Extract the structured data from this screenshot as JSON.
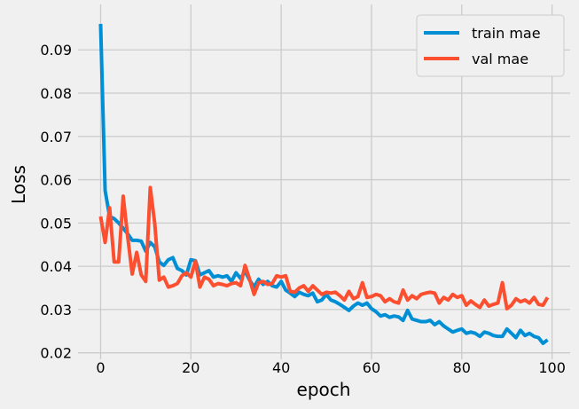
{
  "chart_data": {
    "type": "line",
    "title": "",
    "xlabel": "epoch",
    "ylabel": "Loss",
    "xlim": [
      -5,
      104
    ],
    "ylim": [
      0.0185,
      0.1005
    ],
    "xticks": [
      "0",
      "20",
      "40",
      "60",
      "80",
      "100"
    ],
    "yticks": [
      "0.02",
      "0.03",
      "0.04",
      "0.05",
      "0.06",
      "0.07",
      "0.08",
      "0.09"
    ],
    "grid": true,
    "legend_position": "top-right",
    "colors": {
      "background": "#f0f0f0",
      "grid": "#cbcbcb",
      "train": "#008fd5",
      "val": "#fc4f30"
    },
    "x": [
      0,
      1,
      2,
      3,
      4,
      5,
      6,
      7,
      8,
      9,
      10,
      11,
      12,
      13,
      14,
      15,
      16,
      17,
      18,
      19,
      20,
      21,
      22,
      23,
      24,
      25,
      26,
      27,
      28,
      29,
      30,
      31,
      32,
      33,
      34,
      35,
      36,
      37,
      38,
      39,
      40,
      41,
      42,
      43,
      44,
      45,
      46,
      47,
      48,
      49,
      50,
      51,
      52,
      53,
      54,
      55,
      56,
      57,
      58,
      59,
      60,
      61,
      62,
      63,
      64,
      65,
      66,
      67,
      68,
      69,
      70,
      71,
      72,
      73,
      74,
      75,
      76,
      77,
      78,
      79,
      80,
      81,
      82,
      83,
      84,
      85,
      86,
      87,
      88,
      89,
      90,
      91,
      92,
      93,
      94,
      95,
      96,
      97,
      98,
      99
    ],
    "series": [
      {
        "name": "train mae",
        "color": "#008fd5",
        "values": [
          0.096,
          0.0575,
          0.0515,
          0.051,
          0.05,
          0.0488,
          0.0475,
          0.046,
          0.046,
          0.0458,
          0.0435,
          0.0455,
          0.0445,
          0.041,
          0.0402,
          0.0415,
          0.042,
          0.0395,
          0.039,
          0.038,
          0.0415,
          0.0413,
          0.038,
          0.0385,
          0.039,
          0.0375,
          0.0378,
          0.0375,
          0.0378,
          0.0365,
          0.0385,
          0.0372,
          0.0388,
          0.0368,
          0.0352,
          0.037,
          0.0358,
          0.0365,
          0.0355,
          0.0352,
          0.0365,
          0.0345,
          0.0338,
          0.033,
          0.034,
          0.0335,
          0.0332,
          0.0338,
          0.0318,
          0.0322,
          0.0335,
          0.0322,
          0.0318,
          0.0312,
          0.0305,
          0.0298,
          0.0308,
          0.0315,
          0.031,
          0.0315,
          0.0302,
          0.0295,
          0.0285,
          0.0288,
          0.0282,
          0.0285,
          0.0283,
          0.0275,
          0.0298,
          0.0278,
          0.0275,
          0.0272,
          0.0272,
          0.0275,
          0.0265,
          0.0272,
          0.0262,
          0.0255,
          0.0248,
          0.0252,
          0.0255,
          0.0245,
          0.0248,
          0.0245,
          0.0238,
          0.0248,
          0.0245,
          0.024,
          0.0238,
          0.0238,
          0.0255,
          0.0245,
          0.0235,
          0.0252,
          0.024,
          0.0245,
          0.0238,
          0.0235,
          0.0222,
          0.023
        ]
      },
      {
        "name": "val mae",
        "color": "#fc4f30",
        "values": [
          0.0515,
          0.0455,
          0.0535,
          0.041,
          0.041,
          0.0562,
          0.0468,
          0.0382,
          0.0432,
          0.038,
          0.0365,
          0.0582,
          0.0498,
          0.0368,
          0.0375,
          0.0352,
          0.0355,
          0.036,
          0.0378,
          0.0385,
          0.0375,
          0.0412,
          0.0352,
          0.0375,
          0.037,
          0.0355,
          0.036,
          0.0358,
          0.0355,
          0.036,
          0.0362,
          0.0355,
          0.0402,
          0.037,
          0.0335,
          0.0362,
          0.0365,
          0.0358,
          0.036,
          0.0378,
          0.0375,
          0.0378,
          0.0342,
          0.034,
          0.035,
          0.0355,
          0.0342,
          0.0355,
          0.0345,
          0.0335,
          0.034,
          0.0338,
          0.034,
          0.0332,
          0.0322,
          0.0342,
          0.0325,
          0.033,
          0.0362,
          0.0328,
          0.033,
          0.0335,
          0.0332,
          0.0318,
          0.0325,
          0.0318,
          0.0315,
          0.0345,
          0.0322,
          0.0332,
          0.0325,
          0.0335,
          0.0338,
          0.034,
          0.0338,
          0.0315,
          0.0328,
          0.0322,
          0.0335,
          0.0328,
          0.0332,
          0.031,
          0.032,
          0.0312,
          0.0305,
          0.0322,
          0.0308,
          0.0312,
          0.0315,
          0.0362,
          0.0302,
          0.031,
          0.0325,
          0.0318,
          0.0322,
          0.0315,
          0.0328,
          0.0312,
          0.031,
          0.0328
        ]
      }
    ]
  }
}
